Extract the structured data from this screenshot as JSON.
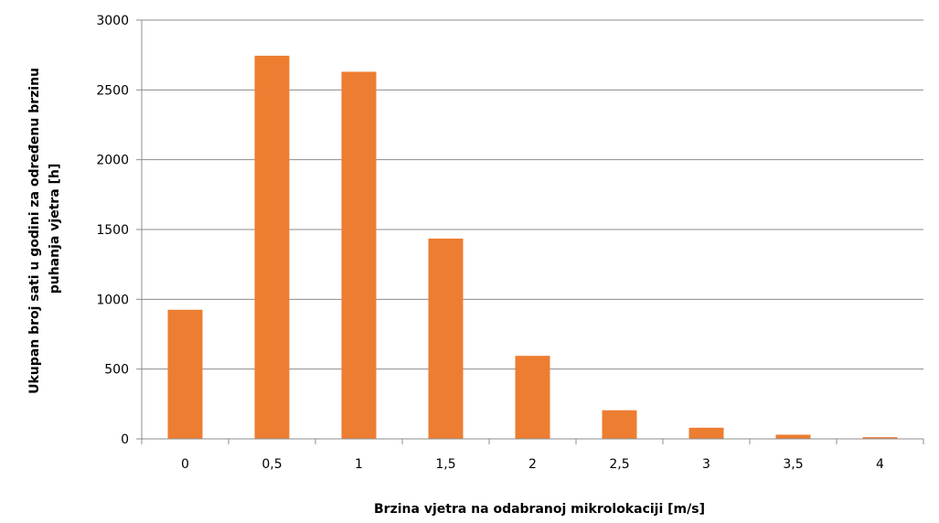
{
  "chart_data": {
    "type": "bar",
    "title": "",
    "xlabel": "Brzina vjetra na odabranoj mikrolokaciji  [m/s]",
    "ylabel_lines": [
      "Ukupan broj sati u godini za određenu brzinu",
      "puhanja vjetra [h]"
    ],
    "categories": [
      "0",
      "0,5",
      "1",
      "1,5",
      "2",
      "2,5",
      "3",
      "3,5",
      "4"
    ],
    "values": [
      925,
      2745,
      2630,
      1435,
      595,
      205,
      80,
      30,
      12
    ],
    "ylim": [
      0,
      3000
    ],
    "yticks": [
      0,
      500,
      1000,
      1500,
      2000,
      2500,
      3000
    ],
    "grid": true,
    "legend": "none",
    "colors": {
      "bar": "#ED7D31",
      "grid": "#8C8C8C",
      "axis": "#8C8C8C",
      "text": "#000000"
    }
  }
}
